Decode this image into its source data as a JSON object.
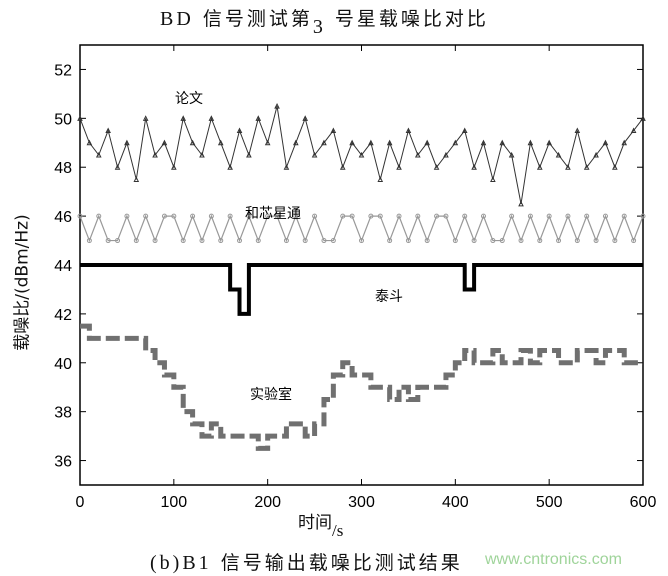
{
  "chart_data": {
    "type": "line",
    "title": "BD信号测试第3号星载噪比对比",
    "title_parts": [
      "BD",
      "信号测试第",
      "3",
      "号星载噪比对比"
    ],
    "caption_parts": [
      "(b)B1",
      "信号输出载噪比测试结果"
    ],
    "xlabel_parts": [
      "时间",
      "/s"
    ],
    "ylabel": "载噪比/(dBm/Hz)",
    "xlim": [
      0,
      600
    ],
    "ylim": [
      35,
      53
    ],
    "xticks": [
      0,
      100,
      200,
      300,
      400,
      500,
      600
    ],
    "yticks": [
      36,
      38,
      40,
      42,
      44,
      46,
      48,
      50,
      52
    ],
    "grid": false,
    "x": [
      0,
      10,
      20,
      30,
      40,
      50,
      60,
      70,
      80,
      90,
      100,
      110,
      120,
      130,
      140,
      150,
      160,
      170,
      180,
      190,
      200,
      210,
      220,
      230,
      240,
      250,
      260,
      270,
      280,
      290,
      300,
      310,
      320,
      330,
      340,
      350,
      360,
      370,
      380,
      390,
      400,
      410,
      420,
      430,
      440,
      450,
      460,
      470,
      480,
      490,
      500,
      510,
      520,
      530,
      540,
      550,
      560,
      570,
      580,
      590,
      600
    ],
    "series": [
      {
        "name": "论文",
        "color": "#333333",
        "values": [
          50,
          49,
          48.5,
          49.5,
          48,
          49,
          47.5,
          50,
          48.5,
          49,
          48,
          50,
          49,
          48.5,
          50,
          49,
          48,
          49.5,
          48.5,
          50,
          49,
          50.5,
          48,
          49,
          50,
          48.5,
          49,
          49.5,
          48,
          49,
          48.5,
          49,
          47.5,
          49,
          48,
          49.5,
          48.5,
          49,
          48,
          48.5,
          49,
          49.5,
          48,
          49,
          47.5,
          49,
          48.5,
          46.5,
          49,
          48,
          49,
          48.5,
          48,
          49.5,
          48,
          48.5,
          49,
          48,
          49,
          49.5,
          50
        ]
      },
      {
        "name": "和芯星通",
        "color": "#999999",
        "values": [
          46,
          45,
          46,
          45,
          45,
          46,
          45,
          46,
          45,
          46,
          46,
          45,
          46,
          45,
          46,
          45,
          46,
          45,
          46,
          45,
          46,
          46,
          45,
          46,
          45,
          46,
          45,
          45,
          46,
          46,
          45,
          46,
          46,
          45,
          46,
          45,
          46,
          45,
          46,
          46,
          45,
          46,
          45,
          46,
          45,
          45,
          46,
          45,
          46,
          45,
          46,
          45,
          46,
          45,
          46,
          45,
          46,
          45,
          46,
          45,
          46
        ]
      },
      {
        "name": "泰斗",
        "color": "#000000",
        "values": [
          44,
          44,
          44,
          44,
          44,
          44,
          44,
          44,
          44,
          44,
          44,
          44,
          44,
          44,
          44,
          44,
          43,
          42,
          44,
          44,
          44,
          44,
          44,
          44,
          44,
          44,
          44,
          44,
          44,
          44,
          44,
          44,
          44,
          44,
          44,
          44,
          44,
          44,
          44,
          44,
          44,
          43,
          44,
          44,
          44,
          44,
          44,
          44,
          44,
          44,
          44,
          44,
          44,
          44,
          44,
          44,
          44,
          44,
          44,
          44,
          44
        ]
      },
      {
        "name": "实验室",
        "color": "#707070",
        "values": [
          41.5,
          41,
          41,
          41,
          41,
          41,
          41,
          40.5,
          40,
          39.5,
          39,
          38,
          37.5,
          37,
          37.5,
          37,
          37,
          37,
          37,
          36.5,
          37,
          37,
          37.5,
          37.5,
          37,
          37.5,
          38.5,
          39.5,
          40,
          39.5,
          39.5,
          39,
          39,
          38.5,
          39,
          38.5,
          39,
          39,
          39,
          39.5,
          40,
          40.5,
          40,
          40,
          40.5,
          40,
          40,
          40.5,
          40,
          40.5,
          40.5,
          40,
          40,
          40.5,
          40.5,
          40,
          40.5,
          40.5,
          40,
          40,
          40
        ]
      }
    ],
    "annotations": [
      "论文",
      "和芯星通",
      "泰斗",
      "实验室"
    ]
  },
  "watermark": "www.cntronics.com"
}
